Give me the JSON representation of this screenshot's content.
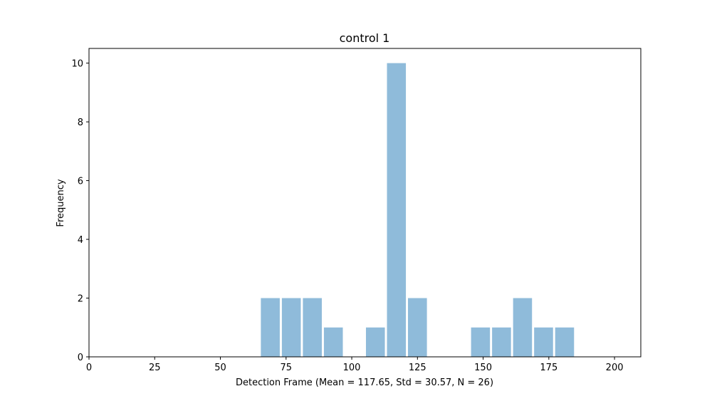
{
  "chart_data": {
    "type": "bar",
    "title": "control 1",
    "xlabel": "Detection Frame (Mean = 117.65, Std = 30.57, N = 26)",
    "ylabel": "Frequency",
    "xlim": [
      0,
      210
    ],
    "ylim": [
      0,
      10.5
    ],
    "x_ticks": [
      0,
      25,
      50,
      75,
      100,
      125,
      150,
      175,
      200
    ],
    "y_ticks": [
      0,
      2,
      4,
      6,
      8,
      10
    ],
    "bin_width": 8,
    "bins": [
      {
        "start": 65,
        "count": 2
      },
      {
        "start": 73,
        "count": 2
      },
      {
        "start": 81,
        "count": 2
      },
      {
        "start": 89,
        "count": 1
      },
      {
        "start": 105,
        "count": 1
      },
      {
        "start": 113,
        "count": 10
      },
      {
        "start": 121,
        "count": 2
      },
      {
        "start": 145,
        "count": 1
      },
      {
        "start": 153,
        "count": 1
      },
      {
        "start": 161,
        "count": 2
      },
      {
        "start": 169,
        "count": 1
      },
      {
        "start": 177,
        "count": 1
      }
    ],
    "bar_color": "#8fbbda",
    "grid": false
  }
}
